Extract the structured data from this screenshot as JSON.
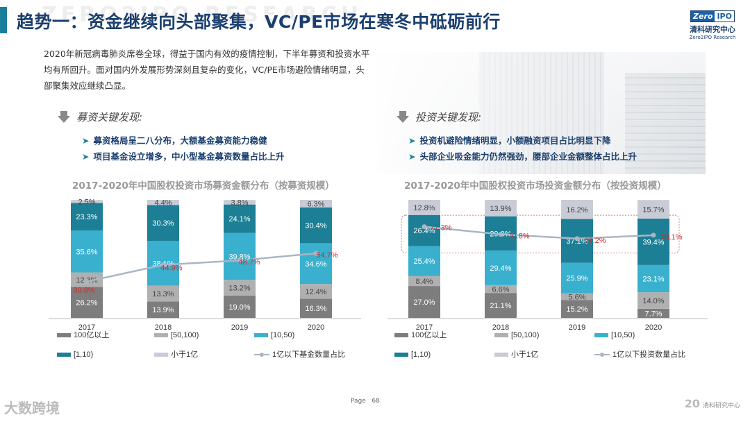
{
  "header": {
    "title": "趋势一：资金继续向头部聚集，VC/PE市场在寒冬中砥砺前行",
    "watermark": "ZERO2IPO RESEARCH",
    "logo_zero": "Zero",
    "logo_ipo": "IPO",
    "logo_cn": "清科研究中心",
    "logo_en": "Zero2IPO Research"
  },
  "intro_text": "2020年新冠病毒肺炎席卷全球，得益于国内有效的疫情控制，下半年募资和投资水平均有所回升。面对国内外发展形势深刻且复杂的变化，VC/PE市场避险情绪明显，头部聚集效应继续凸显。",
  "left_findings": {
    "heading": "募资关键发现:",
    "bullets": [
      "募资格局呈二八分布，大额基金募资能力稳健",
      "项目基金设立增多，中小型基金募资数量占比上升"
    ]
  },
  "right_findings": {
    "heading": "投资关键发现:",
    "bullets": [
      "投资机避险情绪明显，小额融资项目占比明显下降",
      "头部企业吸金能力仍然强劲，腰部企业金额整体占比上升"
    ]
  },
  "colors": {
    "s100yi": "#7d7d7d",
    "s50_100": "#b0b0b0",
    "s10_50": "#3ab0cf",
    "s1_10": "#1c7f95",
    "sxiao": "#c9ccd6",
    "line": "#a9b6c6",
    "linelabel": "#d42b2b"
  },
  "chart_data": [
    {
      "type": "bar",
      "title": "2017-2020年中国股权投资市场募资金额分布（按募资规模）",
      "categories": [
        "2017",
        "2018",
        "2019",
        "2020"
      ],
      "series": [
        {
          "name": "100亿以上",
          "values": [
            26.2,
            13.9,
            19.0,
            16.3
          ]
        },
        {
          "name": "[50,100)",
          "values": [
            12.3,
            13.3,
            13.2,
            12.4
          ]
        },
        {
          "name": "[10,50)",
          "values": [
            35.6,
            38.1,
            39.8,
            34.6
          ]
        },
        {
          "name": "[1,10)",
          "values": [
            23.3,
            30.3,
            24.1,
            30.4
          ]
        },
        {
          "name": "小于1亿",
          "values": [
            2.5,
            4.4,
            3.8,
            6.3
          ]
        }
      ],
      "line": {
        "name": "1亿以下基金数量占比",
        "values": [
          30.8,
          44.9,
          48.7,
          54.7
        ]
      },
      "value_labels": [
        [
          "26.2%",
          "12.3%",
          "35.6%",
          "23.3%",
          "2.5%"
        ],
        [
          "13.9%",
          "13.3%",
          "38.1%",
          "30.3%",
          "4.4%"
        ],
        [
          "19.0%",
          "13.2%",
          "39.8%",
          "24.1%",
          "3.8%"
        ],
        [
          "16.3%",
          "12.4%",
          "34.6%",
          "30.4%",
          "6.3%"
        ]
      ],
      "line_labels": [
        "30.8%",
        "44.9%",
        "48.7%",
        "54.7%"
      ],
      "ylim": [
        0,
        100
      ]
    },
    {
      "type": "bar",
      "title": "2017-2020年中国股权投资市场投资金额分布（按投资规模）",
      "categories": [
        "2017",
        "2018",
        "2019",
        "2020"
      ],
      "series": [
        {
          "name": "100亿以上",
          "values": [
            27.0,
            21.1,
            15.2,
            7.7
          ]
        },
        {
          "name": "[50,100)",
          "values": [
            8.4,
            6.6,
            5.6,
            14.0
          ]
        },
        {
          "name": "[10,50)",
          "values": [
            25.4,
            29.4,
            25.9,
            23.1
          ]
        },
        {
          "name": "[1,10)",
          "values": [
            26.4,
            29.0,
            37.1,
            39.4
          ]
        },
        {
          "name": "小于1亿",
          "values": [
            12.8,
            13.9,
            16.2,
            15.7
          ]
        }
      ],
      "line": {
        "name": "1亿以下投资数量占比",
        "values": [
          77.3,
          70.8,
          67.2,
          70.1
        ]
      },
      "value_labels": [
        [
          "27.0%",
          "8.4%",
          "25.4%",
          "26.4%",
          "12.8%"
        ],
        [
          "21.1%",
          "6.6%",
          "29.4%",
          "29.0%",
          "13.9%"
        ],
        [
          "15.2%",
          "5.6%",
          "25.9%",
          "37.1%",
          "16.2%"
        ],
        [
          "7.7%",
          "14.0%",
          "23.1%",
          "39.4%",
          "15.7%"
        ]
      ],
      "line_labels": [
        "77.3%",
        "70.8%",
        "67.2%",
        "70.1%"
      ],
      "ylim": [
        0,
        100
      ]
    }
  ],
  "footer": {
    "page_label": "Page",
    "page_number": "68",
    "brand": "大数跨境",
    "right_logo": "20",
    "right_text": "清科研究中心"
  }
}
